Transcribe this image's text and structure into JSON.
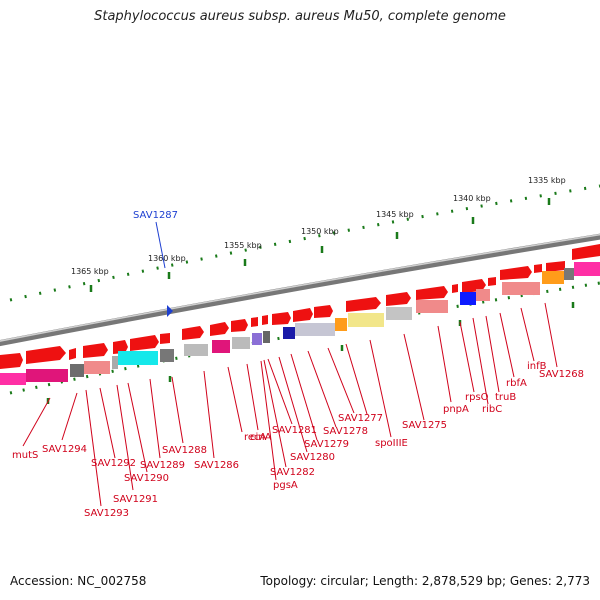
{
  "title": "Staphylococcus aureus subsp. aureus Mu50, complete genome",
  "footer": {
    "accession": "Accession: NC_002758",
    "summary": "Topology: circular; Length: 2,878,529 bp; Genes: 2,773"
  },
  "selected_gene": "SAV1287",
  "scale_labels": [
    "1365 kbp",
    "1360 kbp",
    "1355 kbp",
    "1350 kbp",
    "1345 kbp",
    "1340 kbp",
    "1335 kbp"
  ],
  "gene_labels": [
    "mutS",
    "SAV1294",
    "SAV1293",
    "SAV1292",
    "SAV1291",
    "SAV1290",
    "SAV1289",
    "SAV1288",
    "SAV1286",
    "recA",
    "cinA",
    "SAV1282",
    "pgsA",
    "SAV1281",
    "SAV1280",
    "SAV1279",
    "SAV1278",
    "SAV1277",
    "spoIIIE",
    "SAV1275",
    "pnpA",
    "rpsO",
    "ribC",
    "truB",
    "rbfA",
    "infB",
    "SAV1268"
  ],
  "colors": {
    "gene": "#ee1111",
    "label": "#d0021b",
    "tick": "#1a7a1a",
    "selection": "#1d3fd1",
    "backbone": "#8a8a8a"
  }
}
